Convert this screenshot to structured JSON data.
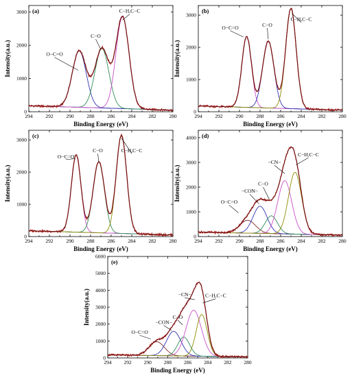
{
  "chart_data": [
    {
      "type": "line",
      "panel_label": "(a)",
      "xlabel": "Binding Energy (eV)",
      "ylabel": "Intensity(a.u.)",
      "xlim": [
        294,
        280
      ],
      "ylim": [
        0,
        3200
      ],
      "xticks": [
        294,
        292,
        290,
        288,
        286,
        284,
        282,
        280
      ],
      "yticks": [
        0,
        1000,
        2000,
        3000
      ],
      "background": {
        "from": 180,
        "to": 50
      },
      "components": [
        {
          "label": "O−C=O",
          "center": 289.1,
          "height": 1700,
          "fwhm": 1.6,
          "color": "#3232b4"
        },
        {
          "label": "C−O",
          "center": 286.9,
          "height": 1790,
          "fwhm": 1.6,
          "color": "#2e8b57"
        },
        {
          "label": "C−H,C−C",
          "center": 284.9,
          "height": 2760,
          "fwhm": 1.5,
          "color": "#c84fc8"
        }
      ],
      "annotations": [
        {
          "text": "O−C=O",
          "label_at": [
            291.5,
            1680
          ],
          "points_to": [
            289.2,
            1250
          ]
        },
        {
          "text": "C−O",
          "label_at": [
            287.5,
            2230
          ],
          "points_to": [
            287.0,
            1870
          ]
        },
        {
          "text": "C−H,C−C",
          "label_at": [
            284.2,
            2980
          ],
          "points_to": [
            284.9,
            2760
          ]
        }
      ]
    },
    {
      "type": "line",
      "panel_label": "(b)",
      "xlabel": "Binding Energy (eV)",
      "ylabel": "Intensity(a.u.)",
      "xlim": [
        294,
        280
      ],
      "ylim": [
        0,
        3300
      ],
      "xticks": [
        294,
        292,
        290,
        288,
        286,
        284,
        282,
        280
      ],
      "yticks": [
        0,
        1000,
        2000,
        3000
      ],
      "background": {
        "from": 180,
        "to": 50
      },
      "components": [
        {
          "label": "O−C=O",
          "center": 289.3,
          "height": 2200,
          "fwhm": 1.1,
          "color": "#c84fc8"
        },
        {
          "label": "C−O",
          "center": 287.2,
          "height": 2080,
          "fwhm": 1.3,
          "color": "#3232b4"
        },
        {
          "label": "C−H,C−C",
          "center": 285.0,
          "height": 3110,
          "fwhm": 1.2,
          "color": "#8b8b00"
        }
      ],
      "annotations": [
        {
          "text": "O−C=O",
          "label_at": [
            290.9,
            2560
          ],
          "points_to": [
            289.6,
            2320
          ]
        },
        {
          "text": "C−O",
          "label_at": [
            287.3,
            2640
          ],
          "points_to": [
            287.2,
            2250
          ]
        },
        {
          "text": "C−H,C−C",
          "label_at": [
            284.0,
            2820
          ],
          "points_to": [
            284.9,
            3050
          ]
        }
      ]
    },
    {
      "type": "line",
      "panel_label": "(c)",
      "xlabel": "Binding Energy (eV)",
      "ylabel": "Intensity(a.u.)",
      "xlim": [
        294,
        280
      ],
      "ylim": [
        0,
        3300
      ],
      "xticks": [
        294,
        292,
        290,
        288,
        286,
        284,
        282,
        280
      ],
      "yticks": [
        0,
        1000,
        2000,
        3000
      ],
      "background": {
        "from": 180,
        "to": 50
      },
      "components": [
        {
          "label": "O−C=O",
          "center": 289.4,
          "height": 2400,
          "fwhm": 1.1,
          "color": "#c84fc8"
        },
        {
          "label": "C−O",
          "center": 287.2,
          "height": 2200,
          "fwhm": 1.3,
          "color": "#2e8b57"
        },
        {
          "label": "C−H,C−C",
          "center": 285.0,
          "height": 3050,
          "fwhm": 1.2,
          "color": "#8b8b00"
        }
      ],
      "annotations": [
        {
          "text": "O−C=O",
          "label_at": [
            290.4,
            2430
          ],
          "points_to": [
            289.5,
            2420
          ]
        },
        {
          "text": "C−O",
          "label_at": [
            287.3,
            2620
          ],
          "points_to": [
            287.2,
            2300
          ]
        },
        {
          "text": "C−H,C−C",
          "label_at": [
            284.0,
            2620
          ],
          "points_to": [
            285.0,
            3060
          ]
        }
      ]
    },
    {
      "type": "line",
      "panel_label": "(d)",
      "xlabel": "Binding Energy (eV)",
      "ylabel": "Intensity(a.u.)",
      "xlim": [
        294,
        280
      ],
      "ylim": [
        0,
        4300
      ],
      "xticks": [
        294,
        292,
        290,
        288,
        286,
        284,
        282,
        280
      ],
      "yticks": [
        0,
        1000,
        2000,
        3000,
        4000
      ],
      "background": {
        "from": 180,
        "to": 60
      },
      "components": [
        {
          "label": "O−C=O",
          "center": 289.2,
          "height": 520,
          "fwhm": 1.8,
          "color": "#7a2a2a"
        },
        {
          "label": "−CON−",
          "center": 288.0,
          "height": 1100,
          "fwhm": 1.6,
          "color": "#3232b4"
        },
        {
          "label": "C−O",
          "center": 286.9,
          "height": 720,
          "fwhm": 1.4,
          "color": "#2e8b57"
        },
        {
          "label": "−CN−",
          "center": 285.6,
          "height": 2150,
          "fwhm": 1.6,
          "color": "#c84fc8"
        },
        {
          "label": "C−H,C−C",
          "center": 284.6,
          "height": 2500,
          "fwhm": 1.5,
          "color": "#8b8b00"
        }
      ],
      "annotations": [
        {
          "text": "O−C=O",
          "label_at": [
            291.0,
            1330
          ],
          "points_to": [
            290.1,
            960
          ]
        },
        {
          "text": "−CON−",
          "label_at": [
            289.0,
            1770
          ],
          "points_to": [
            288.1,
            1320
          ]
        },
        {
          "text": "C−O",
          "label_at": [
            287.7,
            2060
          ],
          "points_to": [
            287.1,
            1500
          ]
        },
        {
          "text": "−CN−",
          "label_at": [
            286.6,
            2940
          ],
          "points_to": [
            285.6,
            2550
          ]
        },
        {
          "text": "C−H,C−C",
          "label_at": [
            283.3,
            3250
          ],
          "points_to": [
            284.5,
            2900
          ]
        }
      ]
    },
    {
      "type": "line",
      "panel_label": "(e)",
      "xlabel": "Binding Energy (eV)",
      "ylabel": "Intensity(a.u.)",
      "xlim": [
        294,
        280
      ],
      "ylim": [
        0,
        6000
      ],
      "xticks": [
        294,
        292,
        290,
        288,
        286,
        284,
        282,
        280
      ],
      "yticks": [
        0,
        1000,
        2000,
        3000,
        4000,
        5000,
        6000
      ],
      "background": {
        "from": 180,
        "to": 60
      },
      "components": [
        {
          "label": "O−C=O",
          "center": 289.1,
          "height": 820,
          "fwhm": 1.8,
          "color": "#7a2a2a"
        },
        {
          "label": "−CON−",
          "center": 287.4,
          "height": 1450,
          "fwhm": 1.7,
          "color": "#3232b4"
        },
        {
          "label": "C−O",
          "center": 286.4,
          "height": 1120,
          "fwhm": 1.4,
          "color": "#2e8b57"
        },
        {
          "label": "−CN−",
          "center": 285.4,
          "height": 2720,
          "fwhm": 1.8,
          "color": "#c84fc8"
        },
        {
          "label": "C−H,C−C",
          "center": 284.6,
          "height": 2470,
          "fwhm": 1.3,
          "color": "#8b8b00"
        }
      ],
      "annotations": [
        {
          "text": "O−C=O",
          "label_at": [
            290.8,
            1420
          ],
          "points_to": [
            289.7,
            1120
          ]
        },
        {
          "text": "−CON−",
          "label_at": [
            288.4,
            2000
          ],
          "points_to": [
            287.6,
            1620
          ]
        },
        {
          "text": "C−O",
          "label_at": [
            287.0,
            2320
          ],
          "points_to": [
            286.5,
            1950
          ]
        },
        {
          "text": "−CN−",
          "label_at": [
            286.3,
            3640
          ],
          "points_to": [
            285.3,
            3450
          ]
        },
        {
          "text": "C−H,C−C",
          "label_at": [
            283.2,
            3580
          ],
          "points_to": [
            284.5,
            3250
          ]
        }
      ]
    }
  ],
  "colors": {
    "experimental": "#b22222",
    "fit_envelope": "#5a0f0f",
    "background_line": "#1a1a8c",
    "axes": "#000000"
  }
}
